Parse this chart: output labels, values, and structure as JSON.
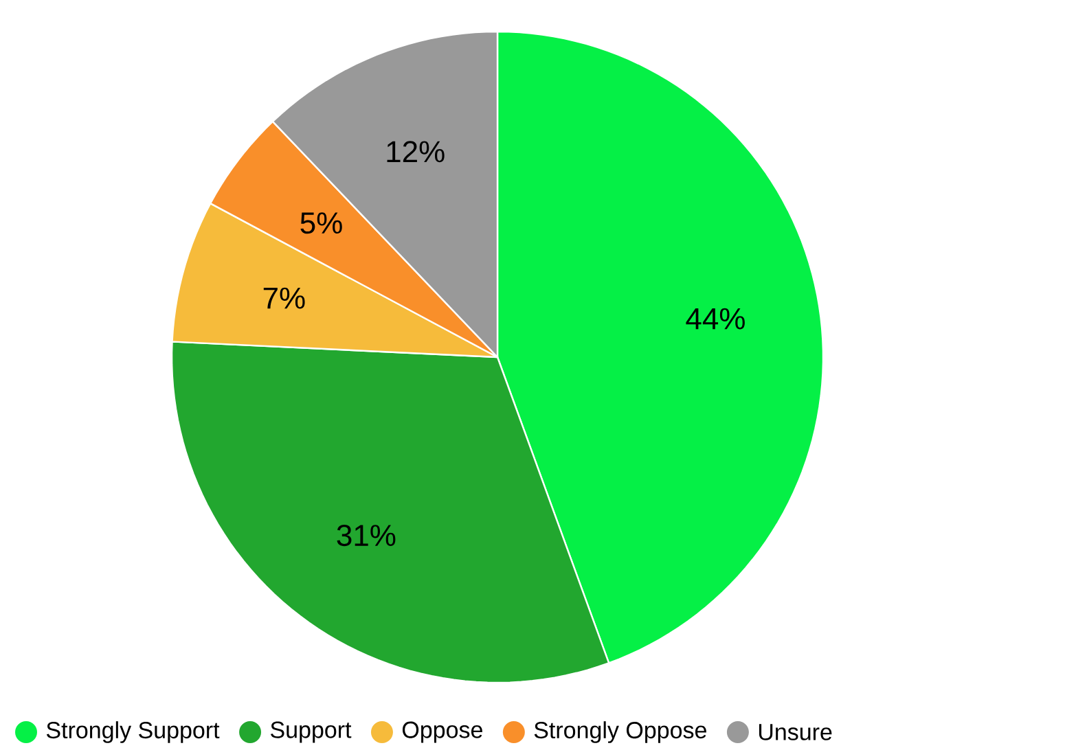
{
  "chart_data": {
    "type": "pie",
    "categories": [
      "Strongly Support",
      "Support",
      "Oppose",
      "Strongly Oppose",
      "Unsure"
    ],
    "values": [
      44,
      31,
      7,
      5,
      12
    ],
    "colors": [
      "#05f046",
      "#22a72f",
      "#f6bb3b",
      "#f98f2a",
      "#999999"
    ],
    "value_labels": [
      "44%",
      "31%",
      "7%",
      "5%",
      "12%"
    ],
    "legend": "bottom"
  }
}
